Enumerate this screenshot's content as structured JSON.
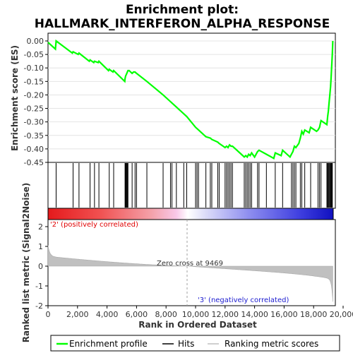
{
  "chart_data": {
    "type": "line",
    "title_line1": "Enrichment plot:",
    "title_line2": "HALLMARK_INTERFERON_ALPHA_RESPONSE",
    "es_ylabel": "Enrichment score (ES)",
    "metric_ylabel": "Ranked list metric (Signal2Noise)",
    "xlabel": "Rank in Ordered Dataset",
    "xlim": [
      0,
      20000
    ],
    "x_ticks": [
      "0",
      "2,000",
      "4,000",
      "6,000",
      "8,000",
      "10,000",
      "12,000",
      "14,000",
      "16,000",
      "18,000",
      "20,000"
    ],
    "es_ylim": [
      -0.45,
      0.0
    ],
    "es_ticks": [
      "0.00",
      "-0.05",
      "-0.10",
      "-0.15",
      "-0.20",
      "-0.25",
      "-0.30",
      "-0.35",
      "-0.40",
      "-0.45"
    ],
    "metric_ylim": [
      -2,
      2
    ],
    "metric_ticks": [
      "2",
      "1",
      "0",
      "-1",
      "-2"
    ],
    "zero_cross_label": "Zero cross at 9469",
    "zero_cross": 9469,
    "pos_label": "'2' (positively correlated)",
    "neg_label": "'3' (negatively correlated)",
    "n_genes": 19300,
    "legend": [
      "Enrichment profile",
      "Hits",
      "Ranking metric scores"
    ],
    "colors": {
      "profile": "#00ff00",
      "hits": "#000000",
      "metric": "#c0c0c0",
      "pos": "#ff0000",
      "neg": "#0000ff"
    },
    "series": [
      {
        "name": "Enrichment profile",
        "x": [
          0,
          500,
          550,
          1650,
          1700,
          2050,
          2100,
          2800,
          2850,
          3100,
          3150,
          3400,
          3450,
          4100,
          4150,
          4400,
          4450,
          5200,
          5220,
          5260,
          5300,
          5340,
          5380,
          5420,
          5500,
          5600,
          5700,
          5800,
          5900,
          6000,
          6700,
          7800,
          8300,
          8400,
          8700,
          9200,
          9400,
          10000,
          10100,
          10200,
          10700,
          11000,
          11100,
          11500,
          11600,
          12000,
          12100,
          12200,
          12300,
          12400,
          12500,
          13100,
          13300,
          13400,
          13500,
          13600,
          13700,
          13800,
          14000,
          14200,
          14300,
          14800,
          15300,
          15400,
          15800,
          15900,
          16400,
          16500,
          16600,
          16700,
          16800,
          17000,
          17100,
          17200,
          17300,
          17400,
          17700,
          17800,
          18200,
          18300,
          18400,
          18500,
          18900,
          18950,
          19000,
          19050,
          19100,
          19150,
          19180,
          19210,
          19240,
          19270,
          19300
        ],
        "y": [
          -0.005,
          -0.03,
          0.0,
          -0.045,
          -0.04,
          -0.05,
          -0.045,
          -0.075,
          -0.07,
          -0.08,
          -0.075,
          -0.08,
          -0.075,
          -0.11,
          -0.105,
          -0.115,
          -0.11,
          -0.15,
          -0.14,
          -0.13,
          -0.125,
          -0.12,
          -0.115,
          -0.11,
          -0.11,
          -0.115,
          -0.12,
          -0.115,
          -0.115,
          -0.12,
          -0.15,
          -0.2,
          -0.225,
          -0.23,
          -0.245,
          -0.27,
          -0.28,
          -0.32,
          -0.325,
          -0.33,
          -0.355,
          -0.36,
          -0.365,
          -0.375,
          -0.38,
          -0.395,
          -0.39,
          -0.395,
          -0.385,
          -0.39,
          -0.39,
          -0.42,
          -0.43,
          -0.425,
          -0.43,
          -0.42,
          -0.425,
          -0.415,
          -0.43,
          -0.41,
          -0.405,
          -0.42,
          -0.435,
          -0.415,
          -0.425,
          -0.405,
          -0.43,
          -0.42,
          -0.41,
          -0.39,
          -0.395,
          -0.38,
          -0.36,
          -0.335,
          -0.345,
          -0.33,
          -0.34,
          -0.32,
          -0.335,
          -0.33,
          -0.32,
          -0.295,
          -0.31,
          -0.28,
          -0.26,
          -0.23,
          -0.2,
          -0.17,
          -0.14,
          -0.11,
          -0.08,
          -0.05,
          0.0
        ]
      },
      {
        "name": "Hits",
        "x": [
          550,
          1700,
          2100,
          2850,
          3150,
          3450,
          4150,
          4450,
          5220,
          5260,
          5300,
          5340,
          5380,
          5420,
          5700,
          5900,
          6000,
          6700,
          7800,
          8300,
          8400,
          8700,
          9200,
          9400,
          10000,
          10100,
          10200,
          10700,
          11000,
          11100,
          11500,
          11600,
          12000,
          12100,
          12200,
          12300,
          12400,
          12500,
          13300,
          13400,
          13500,
          13600,
          13700,
          13800,
          14200,
          14300,
          14800,
          15400,
          15900,
          16500,
          16600,
          16700,
          16800,
          17100,
          17200,
          17400,
          17800,
          18300,
          18400,
          18500,
          18900,
          18950,
          19000,
          19050,
          19100,
          19150,
          19180,
          19210,
          19240,
          19270
        ]
      }
    ]
  }
}
